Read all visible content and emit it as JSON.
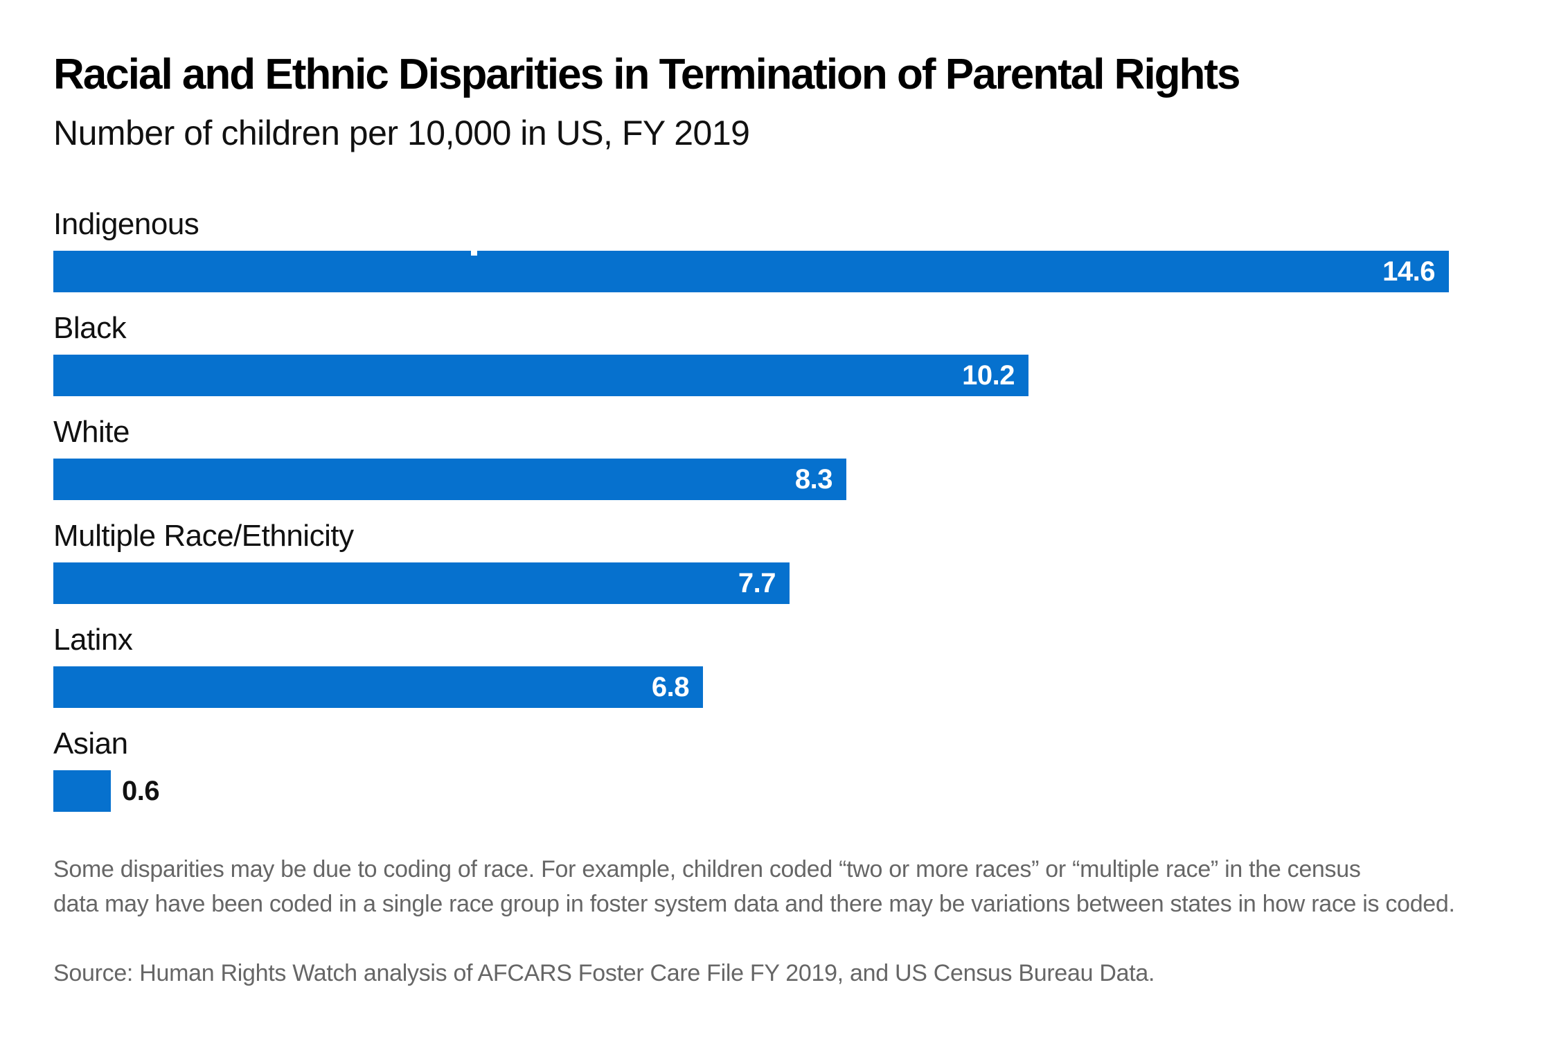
{
  "header": {
    "title": "Racial and Ethnic Disparities in Termination of Parental Rights",
    "subtitle": "Number of children per 10,000 in US, FY 2019"
  },
  "chart_data": {
    "type": "bar",
    "orientation": "horizontal",
    "title": "Racial and Ethnic Disparities in Termination of Parental Rights",
    "subtitle": "Number of children per 10,000 in US, FY 2019",
    "categories": [
      "Indigenous",
      "Black",
      "White",
      "Multiple Race/Ethnicity",
      "Latinx",
      "Asian"
    ],
    "values": [
      14.6,
      10.2,
      8.3,
      7.7,
      6.8,
      0.6
    ],
    "value_labels": [
      "14.6",
      "10.2",
      "8.3",
      "7.7",
      "6.8",
      "0.6"
    ],
    "value_label_positions": [
      "inside",
      "inside",
      "inside",
      "inside",
      "inside",
      "outside"
    ],
    "xlim": [
      0,
      15.7
    ],
    "grid": false,
    "legend": false,
    "bar_color": "#0671ce",
    "value_label_color_inside": "#ffffff",
    "value_label_color_outside": "#111111"
  },
  "notes": {
    "line1": "Some disparities may be due to coding of race. For example, children coded “two or more races” or “multiple race” in the census",
    "line2": "data may have been coded in a single race group in foster system data and there may be variations between states in how race is coded.",
    "source": "Source: Human Rights Watch analysis of AFCARS Foster Care File FY 2019, and US Census Bureau Data."
  },
  "colors": {
    "background": "#ffffff",
    "bar": "#0671ce",
    "title_text": "#000000",
    "label_text": "#111111",
    "note_text": "#666666"
  }
}
